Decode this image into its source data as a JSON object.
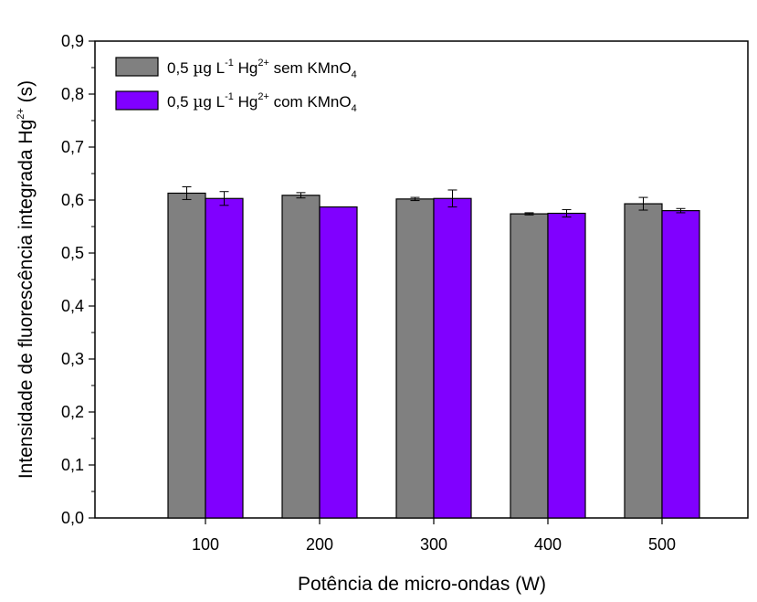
{
  "chart_data": {
    "type": "bar",
    "categories": [
      "100",
      "200",
      "300",
      "400",
      "500"
    ],
    "series": [
      {
        "name": "0,5 µg L-1 Hg2+ sem KMnO4",
        "color": "#808080",
        "values": [
          0.613,
          0.609,
          0.602,
          0.574,
          0.593
        ],
        "errors": [
          0.012,
          0.005,
          0.003,
          0.002,
          0.012
        ]
      },
      {
        "name": "0,5 µg L-1 Hg2+ com KMnO4",
        "color": "#8000ff",
        "values": [
          0.603,
          0.587,
          0.603,
          0.575,
          0.58
        ],
        "errors": [
          0.013,
          0.0,
          0.016,
          0.007,
          0.004
        ]
      }
    ],
    "xlabel": "Potência de micro-ondas (W)",
    "ylabel": "Intensidade de fluorescência integrada Hg2+ (s)",
    "ylim": [
      0,
      0.9
    ],
    "yticks": [
      "0,0",
      "0,1",
      "0,2",
      "0,3",
      "0,4",
      "0,5",
      "0,6",
      "0,7",
      "0,8",
      "0,9"
    ],
    "legend_position": "top-left",
    "grid": false
  },
  "legend": [
    {
      "prefix": "0,5 ",
      "mu": "µ",
      "unit": "g L",
      "exp1": "-1",
      "ion": " Hg",
      "exp2": "2+",
      "desc": " sem KMnO",
      "sub": "4"
    },
    {
      "prefix": "0,5 ",
      "mu": "µ",
      "unit": "g L",
      "exp1": "-1",
      "ion": " Hg",
      "exp2": "2+",
      "desc": " com KMnO",
      "sub": "4"
    }
  ],
  "axes": {
    "xlabel": "Potência de micro-ondas (W)",
    "ylabel_main": "Intensidade de fluorescência integrada Hg",
    "ylabel_sup": "2+",
    "ylabel_unit": " (s)"
  }
}
